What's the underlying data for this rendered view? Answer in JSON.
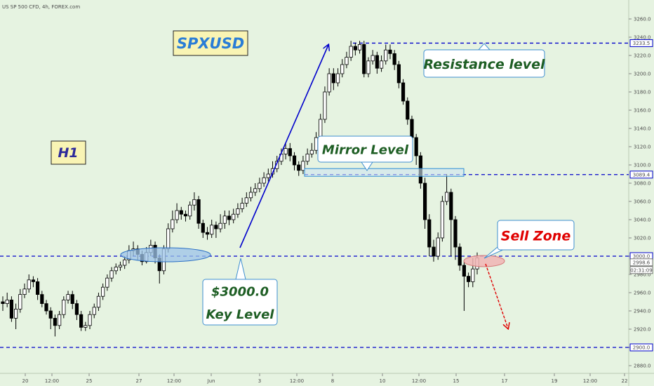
{
  "header": {
    "symbol_text": "US SP 500 CFD, 4h, FOREX.com"
  },
  "colors": {
    "background": "#e6f3e1",
    "candle_up": "#ffffff",
    "candle_down": "#000000",
    "level_line": "#0000cc",
    "arrow_up": "#0000cc",
    "arrow_down": "#e00000",
    "title_box": "#f9f4b4",
    "title_text": "#2a7dd6",
    "callout_text": "#1e5e24",
    "sell_text": "#e00000"
  },
  "annotations": {
    "title": "SPXUSD",
    "timeframe": "H1",
    "resistance": "Resistance level",
    "mirror": "Mirror Level",
    "key_level_line1": "$3000.0",
    "key_level_line2": "Key Level",
    "sell_zone": "Sell Zone"
  },
  "chart_data": {
    "type": "candlestick",
    "title": "SPXUSD",
    "xlabel": "",
    "ylabel": "",
    "ylim": [
      2870,
      3270
    ],
    "y_ticks": [
      2880,
      2900,
      2920,
      2940,
      2960,
      2980,
      3000,
      3020,
      3040,
      3060,
      3080,
      3100,
      3120,
      3140,
      3160,
      3180,
      3200,
      3220,
      3240,
      3260
    ],
    "y_tick_labels": [
      "2880.0",
      "2900.0",
      "2920.0",
      "2940.0",
      "2960.0",
      "2980.0",
      "3000.0",
      "3020.0",
      "3040.0",
      "3060.0",
      "3080.0",
      "3100.0",
      "3120.0",
      "3140.0",
      "3160.0",
      "3180.0",
      "3200.0",
      "3220.0",
      "3240.0",
      "3260.0"
    ],
    "x_ticks": [
      "20",
      "12:00",
      "25",
      "27",
      "12:00",
      "Jun",
      "3",
      "12:00",
      "8",
      "10",
      "12:00",
      "15",
      "17",
      "19",
      "12:00",
      "22"
    ],
    "levels": [
      {
        "label": "3233.5",
        "value": 3233.5,
        "color": "#0000cc"
      },
      {
        "label": "3089.4",
        "value": 3089.4,
        "color": "#0000cc"
      },
      {
        "label": "3000.0",
        "value": 3000.0,
        "color": "#0000cc"
      },
      {
        "label": "2900.0",
        "value": 2900.0,
        "color": "#0000cc"
      }
    ],
    "price_tags": [
      {
        "label": "2998.6",
        "value": 2998.6
      },
      {
        "label": "02:31:09",
        "value": 2990
      }
    ],
    "candles": [
      [
        2950,
        2948,
        2956,
        2940
      ],
      [
        2948,
        2952,
        2960,
        2944
      ],
      [
        2952,
        2932,
        2956,
        2928
      ],
      [
        2932,
        2942,
        2948,
        2920
      ],
      [
        2942,
        2958,
        2964,
        2938
      ],
      [
        2958,
        2964,
        2970,
        2954
      ],
      [
        2964,
        2974,
        2980,
        2960
      ],
      [
        2974,
        2972,
        2978,
        2966
      ],
      [
        2972,
        2958,
        2976,
        2952
      ],
      [
        2958,
        2948,
        2962,
        2944
      ],
      [
        2948,
        2940,
        2952,
        2936
      ],
      [
        2940,
        2932,
        2944,
        2920
      ],
      [
        2932,
        2924,
        2936,
        2912
      ],
      [
        2924,
        2936,
        2940,
        2920
      ],
      [
        2936,
        2952,
        2956,
        2932
      ],
      [
        2952,
        2958,
        2962,
        2948
      ],
      [
        2958,
        2948,
        2962,
        2942
      ],
      [
        2948,
        2936,
        2952,
        2930
      ],
      [
        2936,
        2922,
        2940,
        2918
      ],
      [
        2922,
        2924,
        2928,
        2918
      ],
      [
        2924,
        2936,
        2940,
        2920
      ],
      [
        2936,
        2944,
        2948,
        2932
      ],
      [
        2944,
        2956,
        2960,
        2940
      ],
      [
        2956,
        2966,
        2970,
        2952
      ],
      [
        2966,
        2976,
        2980,
        2962
      ],
      [
        2976,
        2984,
        2988,
        2972
      ],
      [
        2984,
        2988,
        2992,
        2980
      ],
      [
        2988,
        2990,
        2994,
        2984
      ],
      [
        2990,
        2996,
        3000,
        2986
      ],
      [
        2996,
        3006,
        3012,
        2992
      ],
      [
        3006,
        3008,
        3016,
        3000
      ],
      [
        3008,
        3002,
        3012,
        2996
      ],
      [
        3002,
        2994,
        3006,
        2990
      ],
      [
        2994,
        3004,
        3010,
        2992
      ],
      [
        3004,
        3012,
        3018,
        3000
      ],
      [
        3012,
        2998,
        3016,
        2992
      ],
      [
        2998,
        2984,
        3002,
        2970
      ],
      [
        2984,
        3008,
        3012,
        2980
      ],
      [
        3008,
        3030,
        3036,
        3004
      ],
      [
        3030,
        3040,
        3050,
        3026
      ],
      [
        3040,
        3050,
        3058,
        3036
      ],
      [
        3050,
        3046,
        3054,
        3040
      ],
      [
        3046,
        3044,
        3050,
        3038
      ],
      [
        3044,
        3056,
        3060,
        3040
      ],
      [
        3056,
        3062,
        3070,
        3050
      ],
      [
        3062,
        3036,
        3066,
        3030
      ],
      [
        3036,
        3026,
        3040,
        3020
      ],
      [
        3026,
        3024,
        3032,
        3018
      ],
      [
        3024,
        3034,
        3040,
        3020
      ],
      [
        3034,
        3030,
        3038,
        3020
      ],
      [
        3030,
        3036,
        3046,
        3026
      ],
      [
        3036,
        3044,
        3050,
        3030
      ],
      [
        3044,
        3040,
        3050,
        3034
      ],
      [
        3040,
        3046,
        3052,
        3036
      ],
      [
        3046,
        3052,
        3058,
        3042
      ],
      [
        3052,
        3058,
        3064,
        3048
      ],
      [
        3058,
        3064,
        3070,
        3054
      ],
      [
        3064,
        3070,
        3076,
        3060
      ],
      [
        3070,
        3074,
        3080,
        3066
      ],
      [
        3074,
        3080,
        3086,
        3070
      ],
      [
        3080,
        3086,
        3092,
        3076
      ],
      [
        3086,
        3090,
        3096,
        3082
      ],
      [
        3090,
        3096,
        3104,
        3086
      ],
      [
        3096,
        3104,
        3110,
        3092
      ],
      [
        3104,
        3112,
        3118,
        3100
      ],
      [
        3112,
        3118,
        3124,
        3106
      ],
      [
        3118,
        3110,
        3124,
        3104
      ],
      [
        3110,
        3100,
        3114,
        3094
      ],
      [
        3100,
        3094,
        3104,
        3088
      ],
      [
        3094,
        3104,
        3110,
        3090
      ],
      [
        3104,
        3112,
        3118,
        3100
      ],
      [
        3112,
        3116,
        3124,
        3108
      ],
      [
        3116,
        3130,
        3136,
        3112
      ],
      [
        3130,
        3150,
        3156,
        3126
      ],
      [
        3150,
        3180,
        3186,
        3146
      ],
      [
        3180,
        3200,
        3206,
        3176
      ],
      [
        3200,
        3190,
        3206,
        3182
      ],
      [
        3190,
        3200,
        3206,
        3186
      ],
      [
        3200,
        3210,
        3216,
        3196
      ],
      [
        3210,
        3218,
        3224,
        3206
      ],
      [
        3218,
        3230,
        3236,
        3214
      ],
      [
        3230,
        3226,
        3234,
        3220
      ],
      [
        3226,
        3232,
        3236,
        3222
      ],
      [
        3232,
        3200,
        3236,
        3196
      ],
      [
        3200,
        3214,
        3218,
        3196
      ],
      [
        3214,
        3220,
        3226,
        3210
      ],
      [
        3220,
        3206,
        3224,
        3200
      ],
      [
        3206,
        3214,
        3220,
        3202
      ],
      [
        3214,
        3226,
        3232,
        3210
      ],
      [
        3226,
        3222,
        3232,
        3216
      ],
      [
        3222,
        3210,
        3226,
        3204
      ],
      [
        3210,
        3190,
        3214,
        3184
      ],
      [
        3190,
        3170,
        3194,
        3166
      ],
      [
        3170,
        3150,
        3174,
        3144
      ],
      [
        3150,
        3130,
        3154,
        3124
      ],
      [
        3130,
        3110,
        3134,
        3100
      ],
      [
        3110,
        3080,
        3114,
        3074
      ],
      [
        3080,
        3040,
        3086,
        3030
      ],
      [
        3040,
        3010,
        3046,
        3000
      ],
      [
        3010,
        3000,
        3018,
        2994
      ],
      [
        3000,
        3020,
        3026,
        2996
      ],
      [
        3020,
        3060,
        3066,
        3016
      ],
      [
        3060,
        3070,
        3090,
        3056
      ],
      [
        3070,
        3040,
        3074,
        3000
      ],
      [
        3040,
        3010,
        3044,
        2996
      ],
      [
        3010,
        2990,
        3014,
        2984
      ],
      [
        2990,
        2978,
        2994,
        2940
      ],
      [
        2978,
        2972,
        2982,
        2966
      ],
      [
        2972,
        2986,
        2998,
        2966
      ],
      [
        2986,
        2998,
        3004,
        2980
      ]
    ]
  }
}
